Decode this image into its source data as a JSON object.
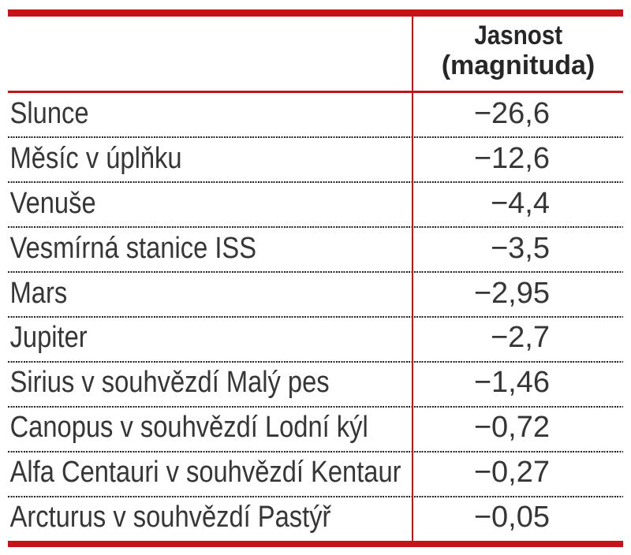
{
  "accent_color": "#c41419",
  "table": {
    "header": {
      "line1": "Jasnost",
      "line2": "(magnituda)"
    },
    "rows": [
      {
        "name": "Slunce",
        "value": "−26,6"
      },
      {
        "name": "Měsíc v úplňku",
        "value": "−12,6"
      },
      {
        "name": "Venuše",
        "value": "−4,4"
      },
      {
        "name": "Vesmírná stanice ISS",
        "value": "−3,5"
      },
      {
        "name": "Mars",
        "value": "−2,95"
      },
      {
        "name": "Jupiter",
        "value": "−2,7"
      },
      {
        "name": "Sirius v souhvězdí Malý pes",
        "value": "−1,46"
      },
      {
        "name": "Canopus v souhvězdí Lodní kýl",
        "value": "−0,72"
      },
      {
        "name": "Alfa Centauri v souhvězdí Kentaur",
        "value": "−0,27"
      },
      {
        "name": "Arcturus v souhvězdí Pastýř",
        "value": "−0,05"
      }
    ]
  },
  "chart_data": {
    "type": "table",
    "title": "",
    "columns": [
      "",
      "Jasnost (magnituda)"
    ],
    "categories": [
      "Slunce",
      "Měsíc v úplňku",
      "Venuše",
      "Vesmírná stanice ISS",
      "Mars",
      "Jupiter",
      "Sirius v souhvězdí Malý pes",
      "Canopus v souhvězdí Lodní kýl",
      "Alfa Centauri v souhvězdí Kentaur",
      "Arcturus v souhvězdí Pastýř"
    ],
    "values": [
      -26.6,
      -12.6,
      -4.4,
      -3.5,
      -2.95,
      -2.7,
      -1.46,
      -0.72,
      -0.27,
      -0.05
    ]
  }
}
